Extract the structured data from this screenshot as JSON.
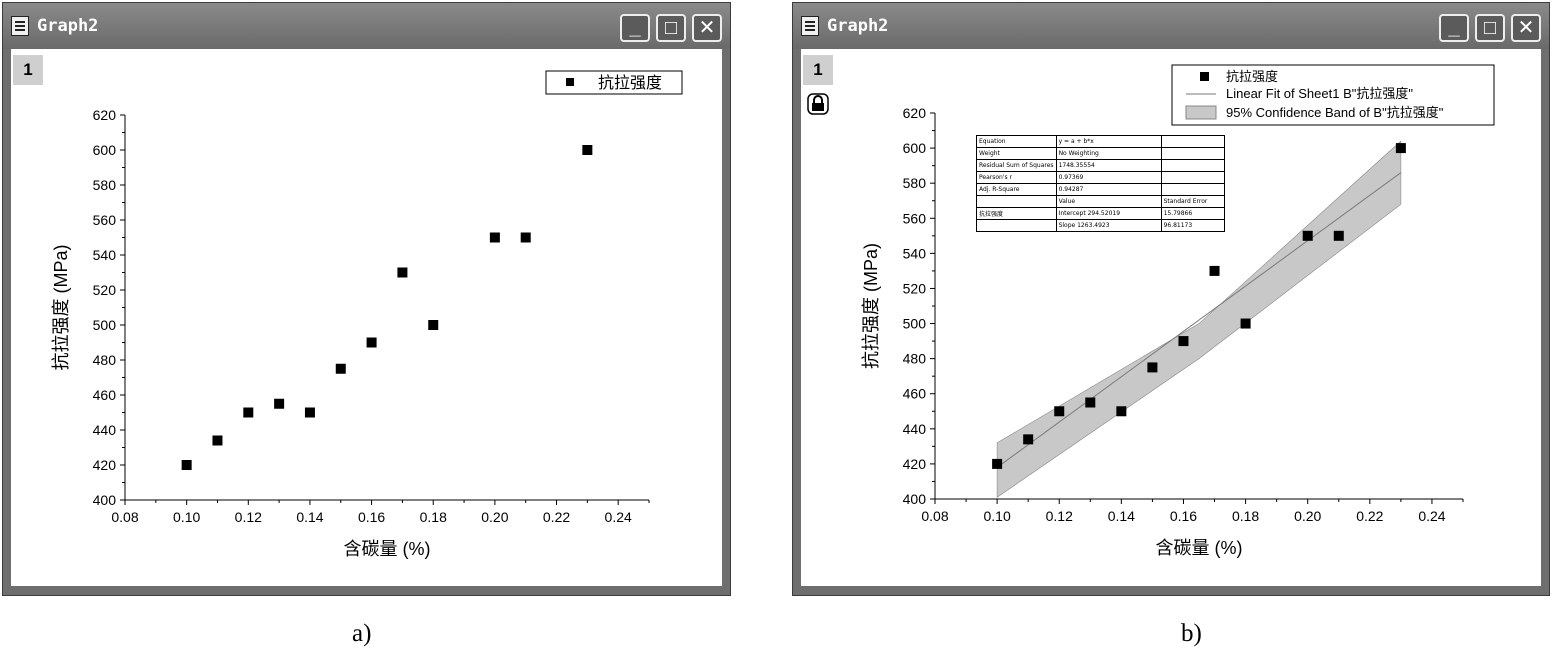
{
  "panel_a": {
    "window_title": "Graph2",
    "layer_label": "1",
    "caption": "a)",
    "buttons": {
      "minimize": "_",
      "maximize": "□",
      "close": "✕"
    }
  },
  "panel_b": {
    "window_title": "Graph2",
    "layer_label": "1",
    "caption": "b)",
    "buttons": {
      "minimize": "_",
      "maximize": "□",
      "close": "✕"
    },
    "fit_table": {
      "rows": [
        [
          "Equation",
          "y = a + b*x",
          ""
        ],
        [
          "Weight",
          "No Weighting",
          ""
        ],
        [
          "Residual Sum of Squares",
          "1748.35554",
          ""
        ],
        [
          "Pearson's r",
          "0.97369",
          ""
        ],
        [
          "Adj. R-Square",
          "0.94287",
          ""
        ],
        [
          "",
          "Value",
          "Standard Error"
        ],
        [
          "抗拉强度",
          "Intercept 294.52019",
          "15.79866"
        ],
        [
          "",
          "Slope 1263.4923",
          "96.81173"
        ]
      ]
    }
  },
  "chart_data": [
    {
      "type": "scatter",
      "xlabel": "含碳量 (%)",
      "ylabel": "抗拉强度 (MPa)",
      "xlim": [
        0.08,
        0.25
      ],
      "ylim": [
        400,
        620
      ],
      "xticks": [
        "0.08",
        "0.10",
        "0.12",
        "0.14",
        "0.16",
        "0.18",
        "0.20",
        "0.22",
        "0.24"
      ],
      "yticks": [
        "400",
        "420",
        "440",
        "460",
        "480",
        "500",
        "520",
        "540",
        "560",
        "580",
        "600",
        "620"
      ],
      "legend": "top-right",
      "series": [
        {
          "name": "抗拉强度",
          "x": [
            0.1,
            0.11,
            0.12,
            0.13,
            0.14,
            0.15,
            0.16,
            0.17,
            0.18,
            0.2,
            0.21,
            0.23
          ],
          "y": [
            420,
            434,
            450,
            455,
            450,
            475,
            490,
            530,
            500,
            550,
            550,
            600
          ]
        }
      ]
    },
    {
      "type": "scatter",
      "xlabel": "含碳量 (%)",
      "ylabel": "抗拉强度 (MPa)",
      "xlim": [
        0.08,
        0.25
      ],
      "ylim": [
        400,
        620
      ],
      "xticks": [
        "0.08",
        "0.10",
        "0.12",
        "0.14",
        "0.16",
        "0.18",
        "0.20",
        "0.22",
        "0.24"
      ],
      "yticks": [
        "400",
        "420",
        "440",
        "460",
        "480",
        "500",
        "520",
        "540",
        "560",
        "580",
        "600",
        "620"
      ],
      "legend": "top-right",
      "series": [
        {
          "name": "抗拉强度",
          "x": [
            0.1,
            0.11,
            0.12,
            0.13,
            0.14,
            0.15,
            0.16,
            0.17,
            0.18,
            0.2,
            0.21,
            0.23
          ],
          "y": [
            420,
            434,
            450,
            455,
            450,
            475,
            490,
            530,
            500,
            550,
            550,
            600
          ]
        },
        {
          "name": "Linear Fit of Sheet1 B\"抗拉强度\"",
          "x": [
            0.1,
            0.23
          ],
          "y": [
            418,
            586
          ]
        },
        {
          "name": "95% Confidence Band of B\"抗拉强度\"",
          "x": [
            0.1,
            0.165,
            0.23
          ],
          "upper": [
            432,
            500,
            604
          ],
          "lower": [
            401,
            480,
            568
          ]
        }
      ]
    }
  ],
  "colors": {
    "marker": "#000000",
    "band": "#c8c8c8",
    "fit_line": "#7a7a7a",
    "frame": "#6e6e6e"
  }
}
